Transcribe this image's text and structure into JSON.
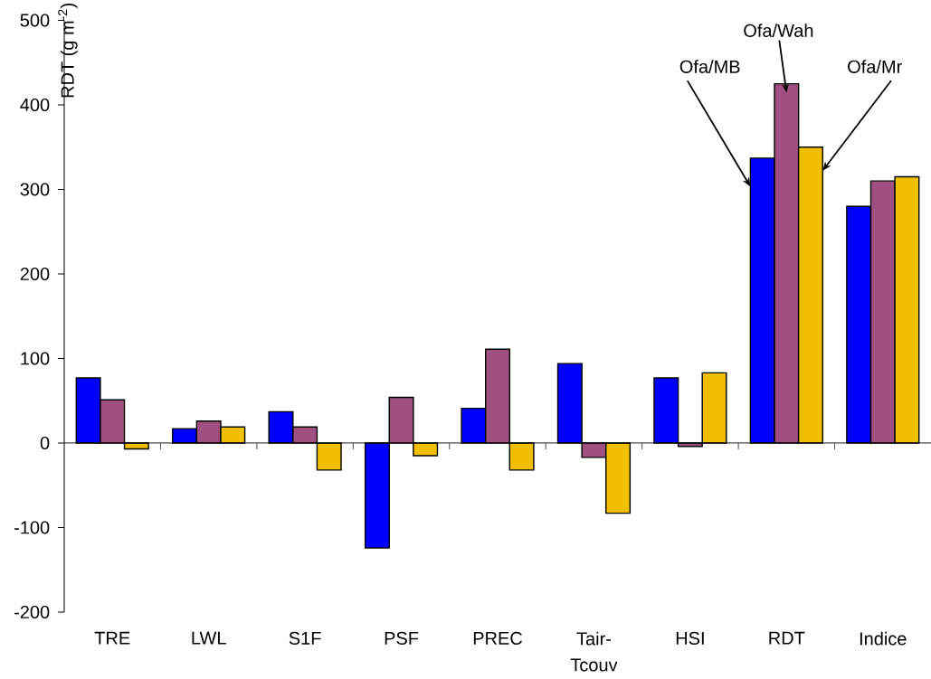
{
  "chart_data": {
    "type": "bar",
    "ylabel": "RDT (g m$^{-2}$)",
    "categories": [
      "TRE",
      "LWL",
      "S1F",
      "PSF",
      "PREC",
      "Tair-Tcouv",
      "HSI",
      "RDT",
      "Indice"
    ],
    "series": [
      {
        "name": "Ofa/MB",
        "color": "#0000ff",
        "values": [
          77,
          17,
          37,
          -124,
          41,
          94,
          77,
          337,
          280
        ]
      },
      {
        "name": "Ofa/Wah",
        "color": "#a05080",
        "values": [
          51,
          26,
          19,
          54,
          111,
          -17,
          -4,
          425,
          310
        ]
      },
      {
        "name": "Ofa/Mr",
        "color": "#f0c000",
        "values": [
          -7,
          19,
          -32,
          -15,
          -32,
          -83,
          83,
          350,
          315
        ]
      }
    ],
    "ylim": [
      -200,
      500
    ],
    "yticks": [
      -200,
      -100,
      0,
      100,
      200,
      300,
      400,
      500
    ]
  }
}
